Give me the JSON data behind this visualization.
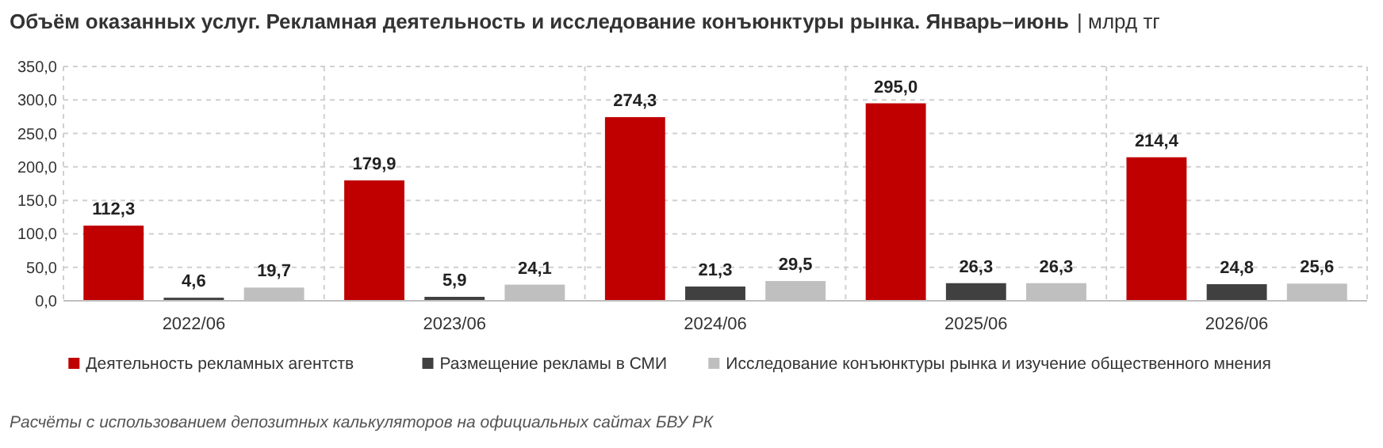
{
  "chart_data": {
    "type": "bar",
    "title": "Объём оказанных услуг. Рекламная деятельность и исследование конъюнктуры рынка. Январь–июнь",
    "subtitle": "| млрд тг",
    "categories": [
      "2022/06",
      "2023/06",
      "2024/06",
      "2025/06",
      "2026/06"
    ],
    "series": [
      {
        "name": "Деятельность рекламных агентств",
        "color": "#c00000",
        "values": [
          112.3,
          179.9,
          274.3,
          295.0,
          214.4
        ],
        "value_labels": [
          "112,3",
          "179,9",
          "274,3",
          "295,0",
          "214,4"
        ]
      },
      {
        "name": "Размещение рекламы в СМИ",
        "color": "#404040",
        "values": [
          4.6,
          5.9,
          21.3,
          26.3,
          24.8
        ],
        "value_labels": [
          "4,6",
          "5,9",
          "21,3",
          "26,3",
          "24,8"
        ]
      },
      {
        "name": "Исследование конъюнктуры рынка и изучение общественного мнения",
        "color": "#bfbfbf",
        "values": [
          19.7,
          24.1,
          29.5,
          26.3,
          25.6
        ],
        "value_labels": [
          "19,7",
          "24,1",
          "29,5",
          "26,3",
          "25,6"
        ]
      }
    ],
    "ylim": [
      0,
      350
    ],
    "yticks": [
      {
        "value": 0,
        "label": "0,0"
      },
      {
        "value": 50,
        "label": "50,0"
      },
      {
        "value": 100,
        "label": "100,0"
      },
      {
        "value": 150,
        "label": "150,0"
      },
      {
        "value": 200,
        "label": "200,0"
      },
      {
        "value": 250,
        "label": "250,0"
      },
      {
        "value": 300,
        "label": "300,0"
      },
      {
        "value": 350,
        "label": "350,0"
      }
    ],
    "grid": true,
    "legend": "bottom",
    "annotations": [
      "Расчёты с использованием депозитных калькуляторов на официальных сайтах БВУ РК"
    ]
  }
}
